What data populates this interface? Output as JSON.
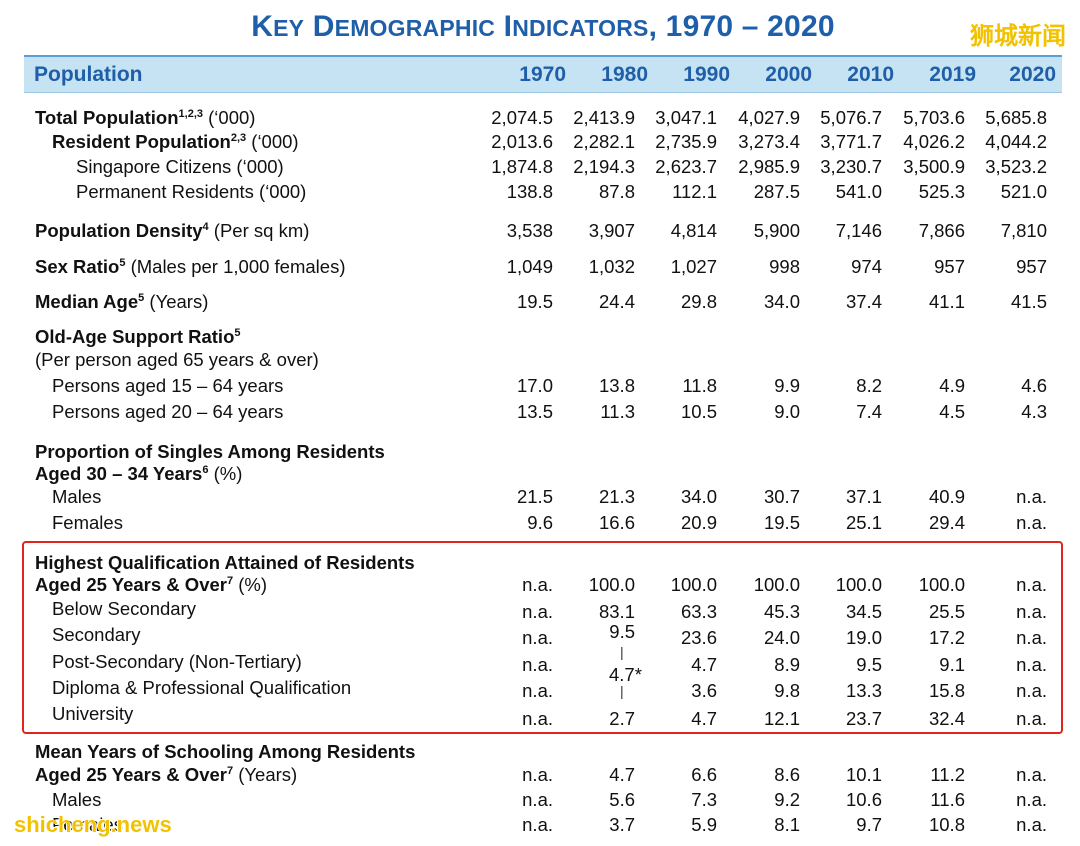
{
  "title": {
    "k": "K",
    "ey": "EY",
    "d": "D",
    "emographic": "EMOGRAPHIC",
    "i": "I",
    "ndicators": "NDICATORS",
    "years": ", 1970 – 2020"
  },
  "watermarks": {
    "top": "狮城新闻",
    "bottom": "shicheng.news"
  },
  "chart_data": {
    "type": "table",
    "title": "KEY DEMOGRAPHIC INDICATORS, 1970 – 2020",
    "columns": [
      "Population",
      "1970",
      "1980",
      "1990",
      "2000",
      "2010",
      "2019",
      "2020"
    ],
    "rows": [
      {
        "label": "Total Population",
        "sup": "1,2,3",
        "unit": " (‘000)",
        "values": [
          "2,074.5",
          "2,413.9",
          "3,047.1",
          "4,027.9",
          "5,076.7",
          "5,703.6",
          "5,685.8"
        ]
      },
      {
        "label": "Resident Population",
        "sup": "2,3",
        "unit": " (‘000)",
        "values": [
          "2,013.6",
          "2,282.1",
          "2,735.9",
          "3,273.4",
          "3,771.7",
          "4,026.2",
          "4,044.2"
        ]
      },
      {
        "label": "Singapore Citizens (‘000)",
        "values": [
          "1,874.8",
          "2,194.3",
          "2,623.7",
          "2,985.9",
          "3,230.7",
          "3,500.9",
          "3,523.2"
        ]
      },
      {
        "label": "Permanent Residents (‘000)",
        "values": [
          "138.8",
          "87.8",
          "112.1",
          "287.5",
          "541.0",
          "525.3",
          "521.0"
        ]
      },
      {
        "label": "Population Density",
        "sup": "4",
        "unit": " (Per sq km)",
        "values": [
          "3,538",
          "3,907",
          "4,814",
          "5,900",
          "7,146",
          "7,866",
          "7,810"
        ]
      },
      {
        "label": "Sex Ratio",
        "sup": "5",
        "unit": " (Males per 1,000 females)",
        "values": [
          "1,049",
          "1,032",
          "1,027",
          "998",
          "974",
          "957",
          "957"
        ]
      },
      {
        "label": "Median Age",
        "sup": "5",
        "unit": " (Years)",
        "values": [
          "19.5",
          "24.4",
          "29.8",
          "34.0",
          "37.4",
          "41.1",
          "41.5"
        ]
      },
      {
        "label": "Old-Age Support Ratio",
        "sup": "5"
      },
      {
        "label": "(Per person aged 65 years & over)"
      },
      {
        "label": "Persons aged 15 – 64 years",
        "values": [
          "17.0",
          "13.8",
          "11.8",
          "9.9",
          "8.2",
          "4.9",
          "4.6"
        ]
      },
      {
        "label": "Persons aged 20 – 64 years",
        "values": [
          "13.5",
          "11.3",
          "10.5",
          "9.0",
          "7.4",
          "4.5",
          "4.3"
        ]
      },
      {
        "label": "Proportion of Singles Among Residents"
      },
      {
        "label": "Aged 30 – 34 Years",
        "sup": "6",
        "unit": " (%)"
      },
      {
        "label": "Males",
        "values": [
          "21.5",
          "21.3",
          "34.0",
          "30.7",
          "37.1",
          "40.9",
          "n.a."
        ]
      },
      {
        "label": "Females",
        "values": [
          "9.6",
          "16.6",
          "20.9",
          "19.5",
          "25.1",
          "29.4",
          "n.a."
        ]
      },
      {
        "label": "Highest Qualification Attained of Residents"
      },
      {
        "label": "Aged 25 Years & Over",
        "sup": "7",
        "unit": " (%)",
        "values": [
          "n.a.",
          "100.0",
          "100.0",
          "100.0",
          "100.0",
          "100.0",
          "n.a."
        ]
      },
      {
        "label": "Below Secondary",
        "values": [
          "n.a.",
          "83.1",
          "63.3",
          "45.3",
          "34.5",
          "25.5",
          "n.a."
        ]
      },
      {
        "label": "Secondary",
        "values": [
          "n.a.",
          "9.5",
          "23.6",
          "24.0",
          "19.0",
          "17.2",
          "n.a."
        ]
      },
      {
        "label": "Post-Secondary (Non-Tertiary)",
        "values": [
          "n.a.",
          "",
          "4.7",
          "8.9",
          "9.5",
          "9.1",
          "n.a."
        ]
      },
      {
        "label": "Diploma & Professional Qualification",
        "values": [
          "n.a.",
          "",
          "3.6",
          "9.8",
          "13.3",
          "15.8",
          "n.a."
        ]
      },
      {
        "label": "University",
        "values": [
          "n.a.",
          "2.7",
          "4.7",
          "12.1",
          "23.7",
          "32.4",
          "n.a."
        ]
      },
      {
        "label": "Mean Years of Schooling Among Residents"
      },
      {
        "label": "Aged 25 Years & Over",
        "sup": "7",
        "unit": " (Years)",
        "values": [
          "n.a.",
          "4.7",
          "6.6",
          "8.6",
          "10.1",
          "11.2",
          "n.a."
        ]
      },
      {
        "label": "Males",
        "values": [
          "n.a.",
          "5.6",
          "7.3",
          "9.2",
          "10.6",
          "11.6",
          "n.a."
        ]
      },
      {
        "label": "Females",
        "values": [
          "n.a.",
          "3.7",
          "5.9",
          "8.1",
          "9.7",
          "10.8",
          "n.a."
        ]
      }
    ],
    "annotation": "4.7*"
  }
}
